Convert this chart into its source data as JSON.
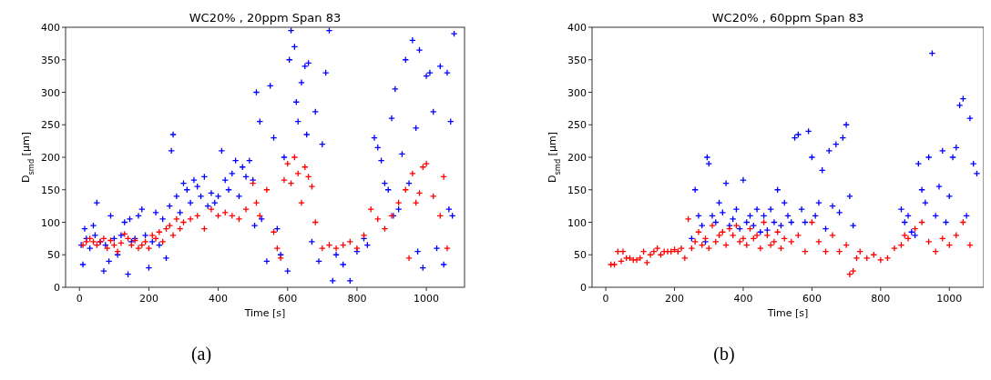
{
  "chart_data": [
    {
      "type": "scatter",
      "title": "WC20% , 20ppm Span 83",
      "xlabel": "Time [s]",
      "ylabel": "D$_{smd}$ [µm]",
      "xlim": [
        -40,
        1110
      ],
      "ylim": [
        0,
        400
      ],
      "xticks": [
        0,
        200,
        400,
        600,
        800,
        1000
      ],
      "yticks": [
        0,
        50,
        100,
        150,
        200,
        250,
        300,
        350,
        400
      ],
      "marker": "cross",
      "grid": false,
      "annotations": [
        "(a)"
      ],
      "series": [
        {
          "color": "#0000ff",
          "x": [
            5,
            10,
            15,
            20,
            30,
            40,
            45,
            50,
            60,
            70,
            75,
            85,
            90,
            100,
            110,
            120,
            130,
            140,
            145,
            150,
            160,
            170,
            180,
            190,
            200,
            210,
            220,
            230,
            240,
            250,
            260,
            265,
            270,
            280,
            290,
            300,
            310,
            320,
            330,
            340,
            350,
            360,
            370,
            380,
            390,
            400,
            410,
            420,
            430,
            440,
            450,
            460,
            470,
            480,
            490,
            500,
            505,
            510,
            520,
            525,
            540,
            550,
            560,
            570,
            580,
            590,
            600,
            605,
            610,
            620,
            625,
            630,
            640,
            650,
            655,
            660,
            670,
            680,
            690,
            700,
            710,
            720,
            730,
            740,
            760,
            780,
            800,
            820,
            830,
            850,
            860,
            870,
            880,
            890,
            900,
            905,
            910,
            920,
            930,
            940,
            950,
            960,
            970,
            975,
            980,
            990,
            1000,
            1010,
            1020,
            1030,
            1040,
            1050,
            1060,
            1065,
            1070,
            1075,
            1080
          ],
          "values": [
            65,
            35,
            90,
            75,
            60,
            95,
            80,
            130,
            70,
            25,
            65,
            40,
            110,
            75,
            50,
            80,
            100,
            20,
            105,
            70,
            75,
            110,
            120,
            80,
            30,
            70,
            115,
            65,
            105,
            45,
            125,
            210,
            235,
            140,
            115,
            160,
            150,
            130,
            165,
            155,
            140,
            170,
            125,
            145,
            130,
            140,
            210,
            165,
            150,
            175,
            195,
            140,
            185,
            170,
            195,
            165,
            95,
            300,
            255,
            105,
            40,
            310,
            230,
            90,
            50,
            200,
            25,
            350,
            395,
            370,
            285,
            255,
            315,
            340,
            235,
            345,
            70,
            270,
            40,
            220,
            330,
            395,
            10,
            50,
            35,
            10,
            55,
            75,
            65,
            230,
            215,
            195,
            160,
            150,
            260,
            110,
            305,
            120,
            205,
            350,
            160,
            380,
            245,
            55,
            365,
            30,
            325,
            330,
            270,
            60,
            340,
            35,
            330,
            120,
            255,
            110,
            390
          ]
        },
        {
          "color": "#ff0000",
          "x": [
            10,
            20,
            30,
            40,
            50,
            60,
            70,
            80,
            90,
            100,
            110,
            120,
            130,
            140,
            150,
            160,
            170,
            180,
            190,
            200,
            210,
            220,
            230,
            240,
            250,
            260,
            270,
            280,
            290,
            300,
            320,
            340,
            360,
            380,
            400,
            420,
            440,
            460,
            480,
            500,
            510,
            520,
            540,
            560,
            570,
            580,
            590,
            600,
            610,
            620,
            630,
            640,
            650,
            660,
            670,
            680,
            700,
            720,
            740,
            760,
            780,
            800,
            820,
            840,
            860,
            880,
            900,
            920,
            940,
            950,
            960,
            970,
            980,
            990,
            1000,
            1020,
            1040,
            1050,
            1060
          ],
          "values": [
            65,
            70,
            75,
            70,
            65,
            70,
            75,
            60,
            72,
            65,
            55,
            68,
            82,
            75,
            65,
            72,
            60,
            65,
            70,
            60,
            80,
            75,
            85,
            70,
            90,
            95,
            80,
            105,
            90,
            100,
            105,
            110,
            90,
            120,
            110,
            115,
            110,
            105,
            120,
            160,
            130,
            110,
            150,
            85,
            60,
            45,
            165,
            190,
            160,
            200,
            175,
            130,
            185,
            170,
            155,
            100,
            60,
            65,
            60,
            65,
            70,
            60,
            80,
            120,
            105,
            90,
            110,
            130,
            150,
            45,
            175,
            130,
            145,
            185,
            190,
            140,
            110,
            170,
            60
          ]
        }
      ]
    },
    {
      "type": "scatter",
      "title": "WC20% , 60ppm Span 83",
      "xlabel": "Time [s]",
      "ylabel": "D$_{smd}$ [µm]",
      "xlim": [
        -40,
        1100
      ],
      "ylim": [
        0,
        400
      ],
      "xticks": [
        0,
        200,
        400,
        600,
        800,
        1000
      ],
      "yticks": [
        0,
        50,
        100,
        150,
        200,
        250,
        300,
        350,
        400
      ],
      "marker": "cross",
      "grid": false,
      "annotations": [
        "(b)"
      ],
      "series": [
        {
          "color": "#0000ff",
          "x": [
            250,
            260,
            270,
            280,
            290,
            295,
            300,
            310,
            320,
            330,
            340,
            350,
            360,
            370,
            380,
            390,
            400,
            410,
            420,
            430,
            440,
            450,
            460,
            470,
            480,
            490,
            500,
            510,
            520,
            530,
            540,
            550,
            560,
            570,
            580,
            590,
            600,
            610,
            620,
            630,
            640,
            650,
            660,
            670,
            680,
            690,
            700,
            710,
            720,
            860,
            870,
            880,
            890,
            900,
            910,
            920,
            930,
            940,
            950,
            960,
            970,
            980,
            990,
            1000,
            1010,
            1020,
            1030,
            1040,
            1050,
            1060,
            1070,
            1080
          ],
          "values": [
            75,
            150,
            110,
            95,
            70,
            200,
            190,
            110,
            100,
            130,
            115,
            160,
            95,
            105,
            120,
            90,
            165,
            100,
            110,
            95,
            120,
            85,
            110,
            88,
            120,
            100,
            150,
            95,
            130,
            110,
            100,
            230,
            235,
            120,
            100,
            240,
            200,
            110,
            130,
            180,
            90,
            210,
            125,
            220,
            115,
            230,
            250,
            140,
            95,
            120,
            100,
            110,
            85,
            80,
            190,
            150,
            130,
            200,
            360,
            110,
            155,
            210,
            100,
            140,
            200,
            215,
            280,
            290,
            110,
            260,
            190,
            175
          ]
        },
        {
          "color": "#ff0000",
          "x": [
            15,
            25,
            35,
            45,
            50,
            60,
            70,
            80,
            90,
            100,
            110,
            120,
            130,
            140,
            150,
            160,
            170,
            180,
            190,
            200,
            210,
            220,
            230,
            240,
            250,
            260,
            270,
            280,
            290,
            300,
            310,
            320,
            330,
            340,
            350,
            360,
            370,
            380,
            390,
            400,
            410,
            420,
            430,
            440,
            450,
            460,
            470,
            480,
            490,
            500,
            510,
            520,
            540,
            560,
            580,
            600,
            620,
            640,
            660,
            680,
            700,
            710,
            720,
            730,
            740,
            760,
            780,
            800,
            820,
            840,
            860,
            870,
            880,
            900,
            920,
            940,
            960,
            980,
            1000,
            1020,
            1040,
            1060
          ],
          "values": [
            35,
            35,
            55,
            40,
            55,
            45,
            45,
            42,
            42,
            45,
            55,
            38,
            50,
            55,
            60,
            50,
            55,
            55,
            55,
            58,
            55,
            60,
            45,
            105,
            60,
            70,
            85,
            65,
            75,
            60,
            95,
            70,
            80,
            85,
            65,
            90,
            80,
            95,
            70,
            75,
            65,
            90,
            75,
            80,
            60,
            100,
            80,
            65,
            70,
            85,
            60,
            75,
            70,
            80,
            55,
            100,
            70,
            55,
            80,
            55,
            65,
            20,
            25,
            45,
            55,
            45,
            50,
            42,
            45,
            60,
            65,
            80,
            75,
            90,
            100,
            70,
            55,
            75,
            65,
            80,
            100,
            65
          ]
        }
      ]
    }
  ]
}
